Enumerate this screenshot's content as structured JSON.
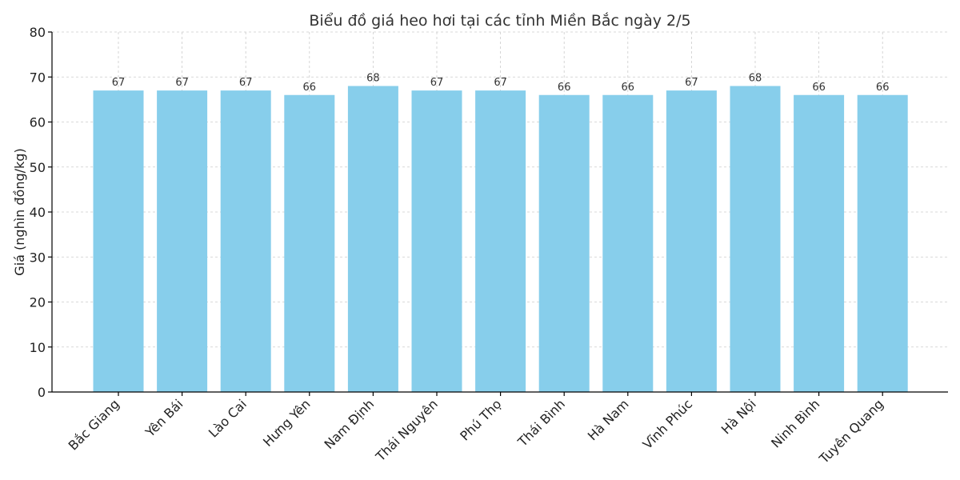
{
  "chart_data": {
    "type": "bar",
    "title": "Biểu đồ giá heo hơi tại các tỉnh Miền Bắc ngày 2/5",
    "xlabel": "",
    "ylabel": "Giá (nghìn đồng/kg)",
    "ylim": [
      0,
      80
    ],
    "yticks": [
      0,
      10,
      20,
      30,
      40,
      50,
      60,
      70,
      80
    ],
    "grid": true,
    "bar_color": "#87CEEB",
    "categories": [
      "Bắc Giang",
      "Yên Bái",
      "Lào Cai",
      "Hưng Yên",
      "Nam Định",
      "Thái Nguyên",
      "Phú Thọ",
      "Thái Bình",
      "Hà Nam",
      "Vĩnh Phúc",
      "Hà Nội",
      "Ninh Bình",
      "Tuyên Quang"
    ],
    "values": [
      67,
      67,
      67,
      66,
      68,
      67,
      67,
      66,
      66,
      67,
      68,
      66,
      66
    ]
  }
}
